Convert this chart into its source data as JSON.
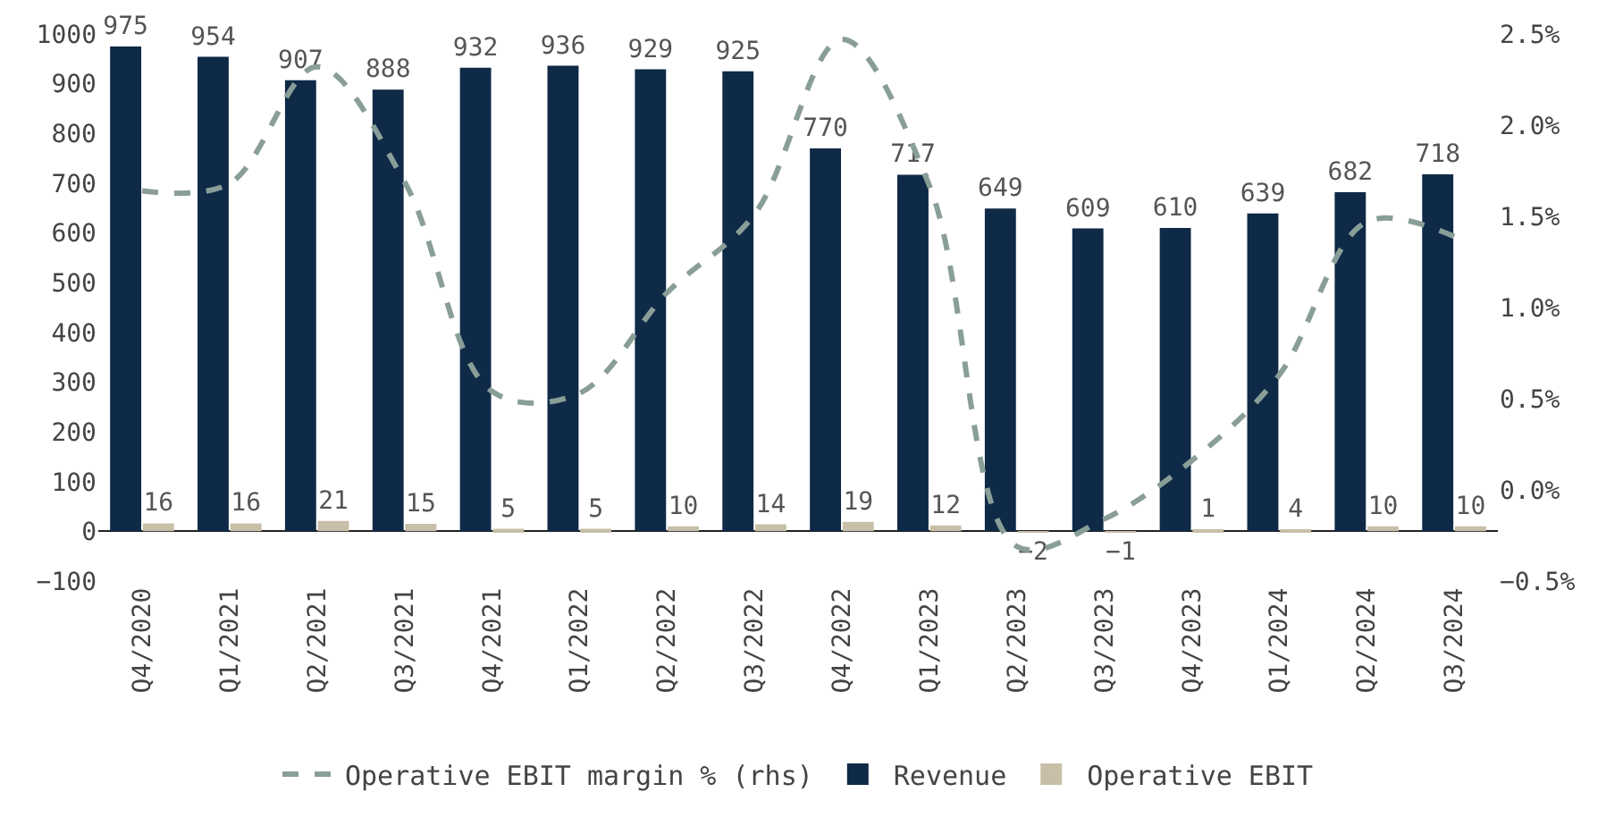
{
  "chart_data": {
    "type": "bar",
    "categories": [
      "Q4/2020",
      "Q1/2021",
      "Q2/2021",
      "Q3/2021",
      "Q4/2021",
      "Q1/2022",
      "Q2/2022",
      "Q3/2022",
      "Q4/2022",
      "Q1/2023",
      "Q2/2023",
      "Q3/2023",
      "Q4/2023",
      "Q1/2024",
      "Q2/2024",
      "Q3/2024"
    ],
    "series": [
      {
        "name": "Operative EBIT margin % (rhs)",
        "type": "line",
        "axis": "y2",
        "color": "#8a9e98",
        "line_style": "dashed",
        "values": [
          1.64,
          1.68,
          2.32,
          1.69,
          0.54,
          0.53,
          1.08,
          1.51,
          2.47,
          1.67,
          -0.31,
          -0.16,
          0.16,
          0.63,
          1.47,
          1.39
        ]
      },
      {
        "name": "Revenue",
        "color": "#0f2a47",
        "values": [
          975,
          954,
          907,
          888,
          932,
          936,
          929,
          925,
          770,
          717,
          649,
          609,
          610,
          639,
          682,
          718
        ],
        "value_labels": [
          "975",
          "954",
          "907",
          "888",
          "932",
          "936",
          "929",
          "925",
          "770",
          "717",
          "649",
          "609",
          "610",
          "639",
          "682",
          "718"
        ]
      },
      {
        "name": "Operative EBIT",
        "color": "#c8bfa8",
        "values": [
          16,
          16,
          21,
          15,
          5,
          5,
          10,
          14,
          19,
          12,
          -2,
          -1,
          1,
          4,
          10,
          10
        ],
        "value_labels": [
          "16",
          "16",
          "21",
          "15",
          "5",
          "5",
          "10",
          "14",
          "19",
          "12",
          "−2",
          "−1",
          "1",
          "4",
          "10",
          "10"
        ]
      }
    ],
    "ylim": [
      -100,
      1000
    ],
    "yticks": [
      -100,
      0,
      100,
      200,
      300,
      400,
      500,
      600,
      700,
      800,
      900,
      1000
    ],
    "y2lim": [
      -0.5,
      2.5
    ],
    "y2ticks": [
      {
        "value": -0.5,
        "label": "−0.5%"
      },
      {
        "value": 0,
        "label": "0.0%"
      },
      {
        "value": 0.5,
        "label": "0.5%"
      },
      {
        "value": 1,
        "label": "1.0%"
      },
      {
        "value": 1.5,
        "label": "1.5%"
      },
      {
        "value": 2,
        "label": "2.0%"
      },
      {
        "value": 2.5,
        "label": "2.5%"
      }
    ],
    "grid": false,
    "legend": "bottom",
    "marker": "none"
  }
}
